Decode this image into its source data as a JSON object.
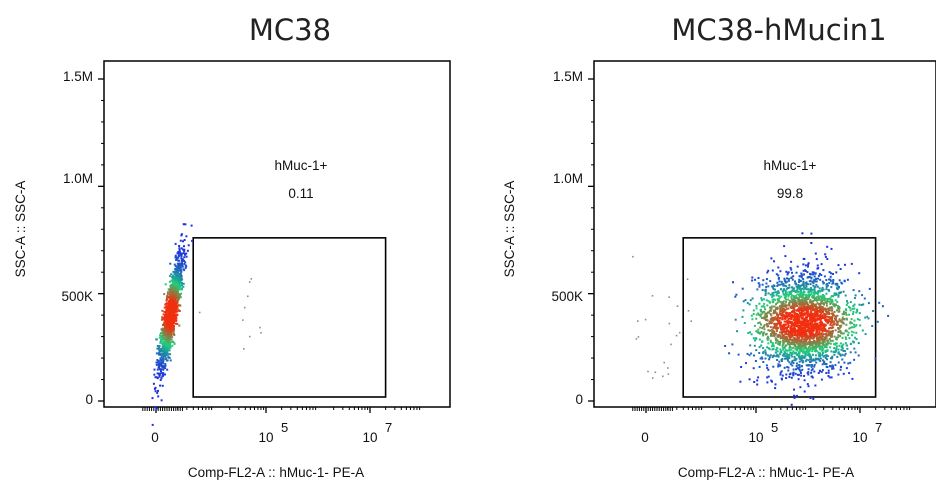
{
  "chart_data": [
    {
      "type": "scatter",
      "title": "MC38",
      "xlabel": "Comp-FL2-A :: hMuc-1- PE-A",
      "ylabel": "SSC-A :: SSC-A",
      "x_scale": "biexponential",
      "x_ticks": [
        {
          "label": "0"
        },
        {
          "base": "10",
          "exp": "5"
        },
        {
          "base": "10",
          "exp": "7"
        }
      ],
      "y_ticks": [
        "0",
        "500K",
        "1.0M",
        "1.5M"
      ],
      "ylim": [
        0,
        1500000
      ],
      "gate": {
        "name": "hMuc-1+",
        "percent": "0.11",
        "x_range_log10": [
          3.6,
          7.3
        ],
        "y_range": [
          0,
          760000
        ]
      },
      "population": {
        "x_center_log10": 3.15,
        "y_center": 410000,
        "y_range": [
          60000,
          670000
        ]
      }
    },
    {
      "type": "scatter",
      "title": "MC38-hMucin1",
      "xlabel": "Comp-FL2-A :: hMuc-1- PE-A",
      "ylabel": "SSC-A :: SSC-A",
      "x_scale": "biexponential",
      "x_ticks": [
        {
          "label": "0"
        },
        {
          "base": "10",
          "exp": "5"
        },
        {
          "base": "10",
          "exp": "7"
        }
      ],
      "y_ticks": [
        "0",
        "500K",
        "1.0M",
        "1.5M"
      ],
      "ylim": [
        0,
        1500000
      ],
      "gate": {
        "name": "hMuc-1+",
        "percent": "99.8",
        "x_range_log10": [
          3.6,
          7.3
        ],
        "y_range": [
          0,
          760000
        ]
      },
      "population": {
        "x_center_log10": 5.9,
        "y_center": 370000,
        "y_range": [
          60000,
          670000
        ]
      }
    }
  ],
  "colors": {
    "density_low": "#1f2fe0",
    "density_mid": "#1fd07a",
    "density_high": "#f03010",
    "frame": "#000000",
    "sparse": "#8b8ba0"
  }
}
